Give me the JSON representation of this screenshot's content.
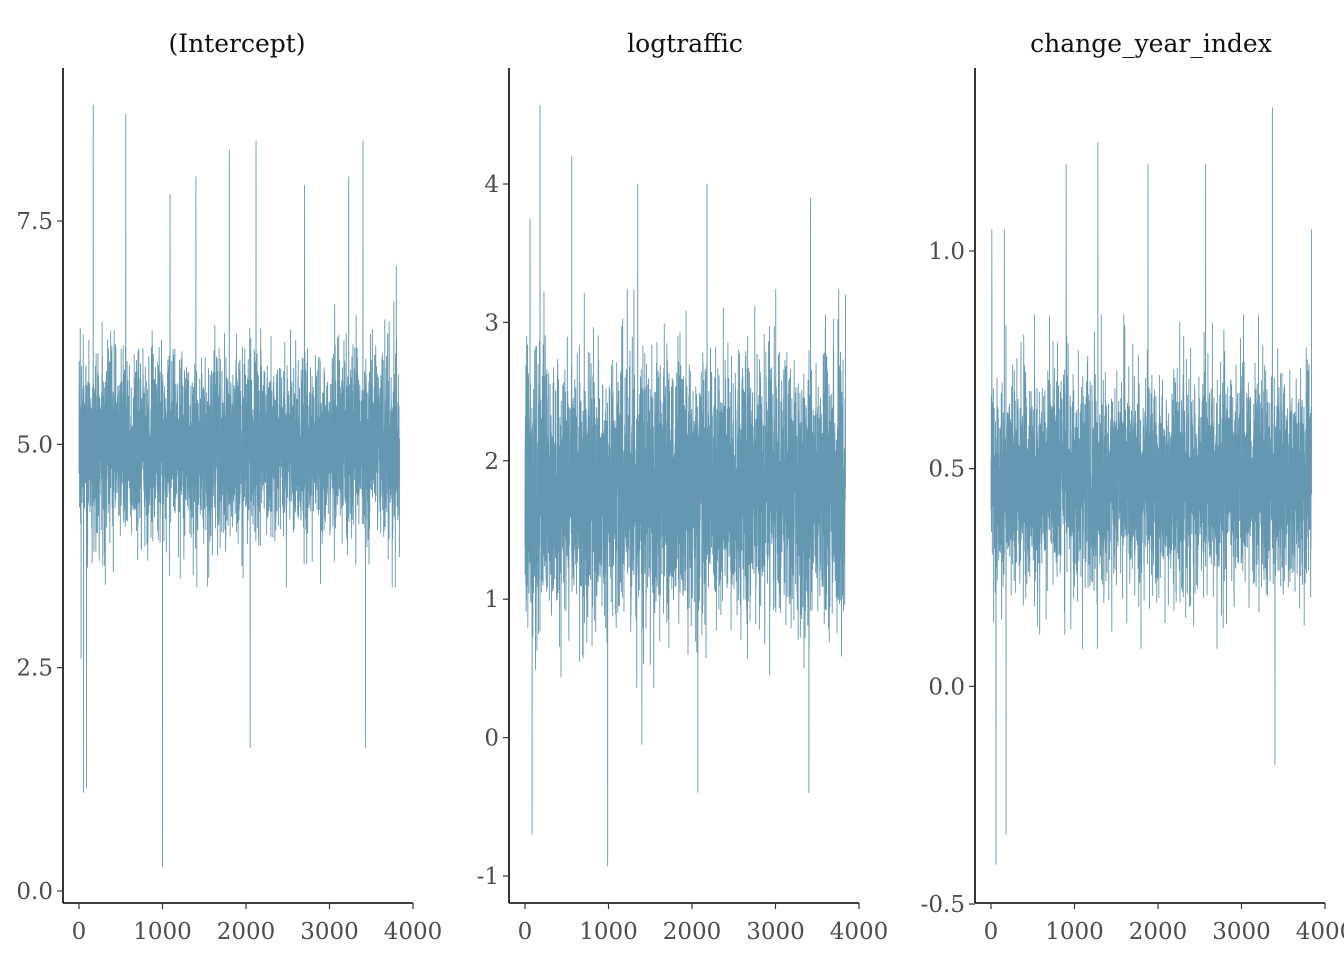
{
  "chart_data": [
    {
      "type": "line",
      "title": "(Intercept)",
      "xlabel": "",
      "ylabel": "",
      "xlim": [
        0,
        3840
      ],
      "ylim": [
        0.0,
        9.0
      ],
      "x_ticks": [
        "0",
        "1000",
        "2000",
        "3000",
        "4000"
      ],
      "y_ticks": [
        "0.0",
        "2.5",
        "5.0",
        "7.5"
      ],
      "y_tick_values": [
        0.0,
        2.5,
        5.0,
        7.5
      ],
      "color": "#6497b1",
      "grid": false,
      "n_iterations": 3840,
      "series": [
        {
          "values_summary": {
            "center": 5.0,
            "sd": 0.5,
            "min": 0.27,
            "max": 8.8
          },
          "notable_points": [
            [
              15,
              6.3
            ],
            [
              25,
              2.6
            ],
            [
              55,
              1.1
            ],
            [
              90,
              1.15
            ],
            [
              170,
              8.8
            ],
            [
              560,
              8.7
            ],
            [
              1000,
              0.27
            ],
            [
              1090,
              7.8
            ],
            [
              1400,
              8.0
            ],
            [
              1800,
              8.3
            ],
            [
              2050,
              1.6
            ],
            [
              2120,
              8.4
            ],
            [
              2700,
              7.9
            ],
            [
              3230,
              8.0
            ],
            [
              3400,
              8.4
            ],
            [
              3430,
              1.6
            ],
            [
              3800,
              7.0
            ]
          ]
        }
      ]
    },
    {
      "type": "line",
      "title": "logtraffic",
      "xlabel": "",
      "ylabel": "",
      "xlim": [
        0,
        3840
      ],
      "ylim": [
        -1.2,
        4.8
      ],
      "x_ticks": [
        "0",
        "1000",
        "2000",
        "3000",
        "4000"
      ],
      "y_ticks": [
        "-1",
        "0",
        "1",
        "2",
        "3",
        "4"
      ],
      "y_tick_values": [
        -1,
        0,
        1,
        2,
        3,
        4
      ],
      "color": "#6497b1",
      "grid": false,
      "n_iterations": 3840,
      "series": [
        {
          "values_summary": {
            "center": 1.8,
            "sd": 0.45,
            "min": -0.93,
            "max": 4.57
          },
          "notable_points": [
            [
              20,
              2.9
            ],
            [
              60,
              3.75
            ],
            [
              85,
              -0.7
            ],
            [
              180,
              4.57
            ],
            [
              560,
              4.2
            ],
            [
              990,
              -0.93
            ],
            [
              1350,
              4.0
            ],
            [
              1400,
              -0.05
            ],
            [
              2070,
              -0.4
            ],
            [
              2180,
              4.0
            ],
            [
              3400,
              -0.4
            ],
            [
              3420,
              3.9
            ],
            [
              3840,
              3.2
            ]
          ]
        }
      ]
    },
    {
      "type": "line",
      "title": "change_year_index",
      "xlabel": "",
      "ylabel": "",
      "xlim": [
        0,
        3840
      ],
      "ylim": [
        -0.5,
        1.4
      ],
      "x_ticks": [
        "0",
        "1000",
        "2000",
        "3000",
        "4000"
      ],
      "y_ticks": [
        "-0.5",
        "0.0",
        "0.5",
        "1.0"
      ],
      "y_tick_values": [
        -0.5,
        0.0,
        0.5,
        1.0
      ],
      "color": "#6497b1",
      "grid": false,
      "n_iterations": 3840,
      "series": [
        {
          "values_summary": {
            "center": 0.47,
            "sd": 0.12,
            "min": -0.41,
            "max": 1.33
          },
          "notable_points": [
            [
              10,
              1.05
            ],
            [
              60,
              -0.41
            ],
            [
              160,
              1.05
            ],
            [
              180,
              -0.34
            ],
            [
              900,
              1.2
            ],
            [
              1280,
              1.25
            ],
            [
              1880,
              1.2
            ],
            [
              2570,
              1.2
            ],
            [
              3370,
              1.33
            ],
            [
              3400,
              -0.18
            ],
            [
              3840,
              1.05
            ]
          ]
        }
      ]
    }
  ]
}
